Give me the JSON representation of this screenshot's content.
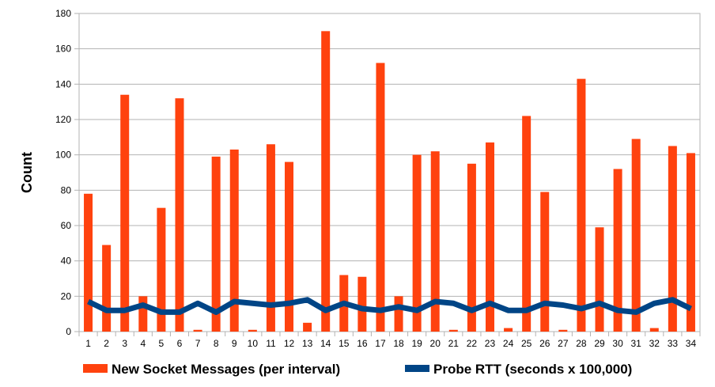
{
  "chart_data": {
    "type": "bar",
    "ylabel": "Count",
    "xlabel": "",
    "ylim": [
      0,
      180
    ],
    "yticks": [
      0,
      20,
      40,
      60,
      80,
      100,
      120,
      140,
      160,
      180
    ],
    "grid": true,
    "legend_position": "bottom",
    "categories": [
      "1",
      "2",
      "3",
      "4",
      "5",
      "6",
      "7",
      "8",
      "9",
      "10",
      "11",
      "12",
      "13",
      "14",
      "15",
      "16",
      "17",
      "18",
      "19",
      "20",
      "21",
      "22",
      "23",
      "24",
      "25",
      "26",
      "27",
      "28",
      "29",
      "30",
      "31",
      "32",
      "33",
      "34"
    ],
    "series": [
      {
        "name": "New Socket Messages (per interval)",
        "kind": "bar",
        "color": "#ff420e",
        "values": [
          78,
          49,
          134,
          20,
          70,
          132,
          1,
          99,
          103,
          1,
          106,
          96,
          5,
          170,
          32,
          31,
          152,
          20,
          100,
          102,
          1,
          95,
          107,
          2,
          122,
          79,
          1,
          143,
          59,
          92,
          109,
          2,
          105,
          101
        ]
      },
      {
        "name": "Probe RTT (seconds x 100,000)",
        "kind": "line",
        "color": "#004586",
        "values": [
          17,
          12,
          12,
          15,
          11,
          11,
          16,
          11,
          17,
          16,
          15,
          16,
          18,
          12,
          16,
          13,
          12,
          14,
          12,
          17,
          16,
          12,
          16,
          12,
          12,
          16,
          15,
          13,
          16,
          12,
          11,
          16,
          18,
          13
        ]
      }
    ]
  }
}
